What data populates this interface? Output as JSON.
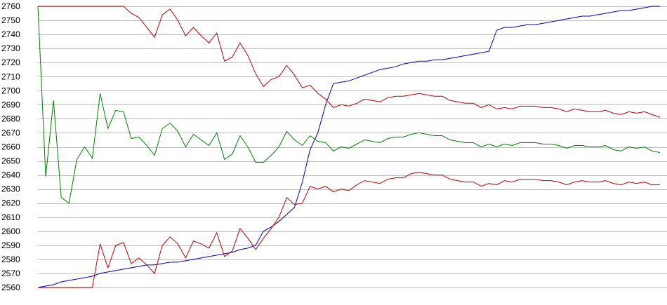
{
  "chart_data": {
    "type": "line",
    "title": "",
    "xlabel": "",
    "ylabel": "",
    "ylim": [
      2560,
      2760
    ],
    "yticks": [
      2560,
      2570,
      2580,
      2590,
      2600,
      2610,
      2620,
      2630,
      2640,
      2650,
      2660,
      2670,
      2680,
      2690,
      2700,
      2710,
      2720,
      2730,
      2740,
      2750,
      2760
    ],
    "xlim": [
      0,
      80
    ],
    "grid": true,
    "legend": "none",
    "series": [
      {
        "color": "#0000c0",
        "x": [
          0,
          1,
          2,
          3,
          4,
          5,
          6,
          7,
          8,
          9,
          10,
          11,
          12,
          13,
          14,
          15,
          16,
          17,
          18,
          19,
          20,
          21,
          22,
          23,
          24,
          25,
          26,
          27,
          28,
          29,
          30,
          31,
          32,
          33,
          34,
          35,
          36,
          37,
          38,
          39,
          40,
          41,
          42,
          43,
          44,
          45,
          46,
          47,
          48,
          49,
          50,
          51,
          52,
          53,
          54,
          55,
          56,
          57,
          58,
          59,
          60,
          61,
          62,
          63,
          64,
          65,
          66,
          67,
          68,
          69,
          70,
          71,
          72,
          73,
          74,
          75,
          76,
          77,
          78,
          79,
          80
        ],
        "values": [
          2560,
          2561,
          2562,
          2564,
          2565,
          2566,
          2567,
          2568,
          2570,
          2571,
          2572,
          2573,
          2574,
          2575,
          2576,
          2576,
          2577,
          2578,
          2578,
          2579,
          2580,
          2581,
          2582,
          2583,
          2584,
          2585,
          2587,
          2588,
          2590,
          2600,
          2603,
          2607,
          2612,
          2617,
          2635,
          2658,
          2670,
          2690,
          2705,
          2706,
          2707,
          2709,
          2711,
          2713,
          2715,
          2716,
          2717,
          2719,
          2720,
          2721,
          2721,
          2722,
          2722,
          2723,
          2724,
          2725,
          2726,
          2727,
          2728,
          2743,
          2745,
          2745,
          2746,
          2747,
          2747,
          2748,
          2749,
          2750,
          2751,
          2752,
          2753,
          2753,
          2754,
          2755,
          2756,
          2757,
          2757,
          2758,
          2759,
          2760,
          2760
        ]
      },
      {
        "color": "#008000",
        "x": [
          0,
          1,
          2,
          3,
          4,
          5,
          6,
          7,
          8,
          9,
          10,
          11,
          12,
          13,
          14,
          15,
          16,
          17,
          18,
          19,
          20,
          21,
          22,
          23,
          24,
          25,
          26,
          27,
          28,
          29,
          30,
          31,
          32,
          33,
          34,
          35,
          36,
          37,
          38,
          39,
          40,
          41,
          42,
          43,
          44,
          45,
          46,
          47,
          48,
          49,
          50,
          51,
          52,
          53,
          54,
          55,
          56,
          57,
          58,
          59,
          60,
          61,
          62,
          63,
          64,
          65,
          66,
          67,
          68,
          69,
          70,
          71,
          72,
          73,
          74,
          75,
          76,
          77,
          78,
          79,
          80
        ],
        "values": [
          2760,
          2639,
          2693,
          2624,
          2620,
          2651,
          2660,
          2652,
          2698,
          2673,
          2686,
          2685,
          2666,
          2667,
          2661,
          2654,
          2673,
          2677,
          2671,
          2660,
          2669,
          2665,
          2661,
          2670,
          2651,
          2655,
          2668,
          2660,
          2649,
          2649,
          2654,
          2660,
          2671,
          2665,
          2661,
          2668,
          2664,
          2663,
          2657,
          2660,
          2659,
          2662,
          2665,
          2664,
          2663,
          2666,
          2667,
          2667,
          2669,
          2670,
          2669,
          2668,
          2668,
          2665,
          2664,
          2663,
          2663,
          2660,
          2662,
          2660,
          2662,
          2661,
          2663,
          2663,
          2663,
          2662,
          2662,
          2661,
          2659,
          2661,
          2661,
          2660,
          2660,
          2661,
          2658,
          2657,
          2660,
          2659,
          2660,
          2657,
          2656
        ]
      },
      {
        "color": "#c00000",
        "x": [
          0,
          1,
          2,
          3,
          4,
          5,
          6,
          7,
          8,
          9,
          10,
          11,
          12,
          13,
          14,
          15,
          16,
          17,
          18,
          19,
          20,
          21,
          22,
          23,
          24,
          25,
          26,
          27,
          28,
          29,
          30,
          31,
          32,
          33,
          34,
          35,
          36,
          37,
          38,
          39,
          40,
          41,
          42,
          43,
          44,
          45,
          46,
          47,
          48,
          49,
          50,
          51,
          52,
          53,
          54,
          55,
          56,
          57,
          58,
          59,
          60,
          61,
          62,
          63,
          64,
          65,
          66,
          67,
          68,
          69,
          70,
          71,
          72,
          73,
          74,
          75,
          76,
          77,
          78,
          79,
          80
        ],
        "values": [
          2760,
          2760,
          2760,
          2760,
          2760,
          2760,
          2760,
          2760,
          2760,
          2760,
          2760,
          2760,
          2755,
          2752,
          2745,
          2738,
          2754,
          2758,
          2750,
          2739,
          2745,
          2739,
          2734,
          2741,
          2721,
          2724,
          2734,
          2725,
          2712,
          2703,
          2708,
          2710,
          2718,
          2711,
          2702,
          2704,
          2698,
          2694,
          2688,
          2690,
          2689,
          2691,
          2694,
          2693,
          2692,
          2695,
          2696,
          2696,
          2697,
          2698,
          2697,
          2696,
          2696,
          2693,
          2692,
          2691,
          2691,
          2688,
          2690,
          2687,
          2688,
          2687,
          2689,
          2689,
          2689,
          2688,
          2688,
          2687,
          2685,
          2687,
          2686,
          2685,
          2685,
          2686,
          2684,
          2683,
          2685,
          2684,
          2685,
          2683,
          2681
        ]
      },
      {
        "color": "#c00000",
        "x": [
          0,
          1,
          2,
          3,
          4,
          5,
          6,
          7,
          8,
          9,
          10,
          11,
          12,
          13,
          14,
          15,
          16,
          17,
          18,
          19,
          20,
          21,
          22,
          23,
          24,
          25,
          26,
          27,
          28,
          29,
          30,
          31,
          32,
          33,
          34,
          35,
          36,
          37,
          38,
          39,
          40,
          41,
          42,
          43,
          44,
          45,
          46,
          47,
          48,
          49,
          50,
          51,
          52,
          53,
          54,
          55,
          56,
          57,
          58,
          59,
          60,
          61,
          62,
          63,
          64,
          65,
          66,
          67,
          68,
          69,
          70,
          71,
          72,
          73,
          74,
          75,
          76,
          77,
          78,
          79,
          80
        ],
        "values": [
          2560,
          2560,
          2560,
          2560,
          2560,
          2560,
          2560,
          2560,
          2591,
          2574,
          2590,
          2592,
          2577,
          2581,
          2576,
          2570,
          2590,
          2596,
          2591,
          2581,
          2593,
          2591,
          2588,
          2599,
          2582,
          2586,
          2602,
          2595,
          2587,
          2595,
          2602,
          2610,
          2624,
          2619,
          2620,
          2632,
          2630,
          2632,
          2628,
          2630,
          2629,
          2633,
          2636,
          2635,
          2634,
          2637,
          2638,
          2638,
          2641,
          2642,
          2641,
          2640,
          2640,
          2637,
          2636,
          2635,
          2635,
          2632,
          2634,
          2633,
          2636,
          2635,
          2637,
          2637,
          2637,
          2636,
          2636,
          2635,
          2633,
          2635,
          2636,
          2635,
          2635,
          2636,
          2634,
          2633,
          2635,
          2634,
          2635,
          2633,
          2633
        ]
      }
    ]
  }
}
